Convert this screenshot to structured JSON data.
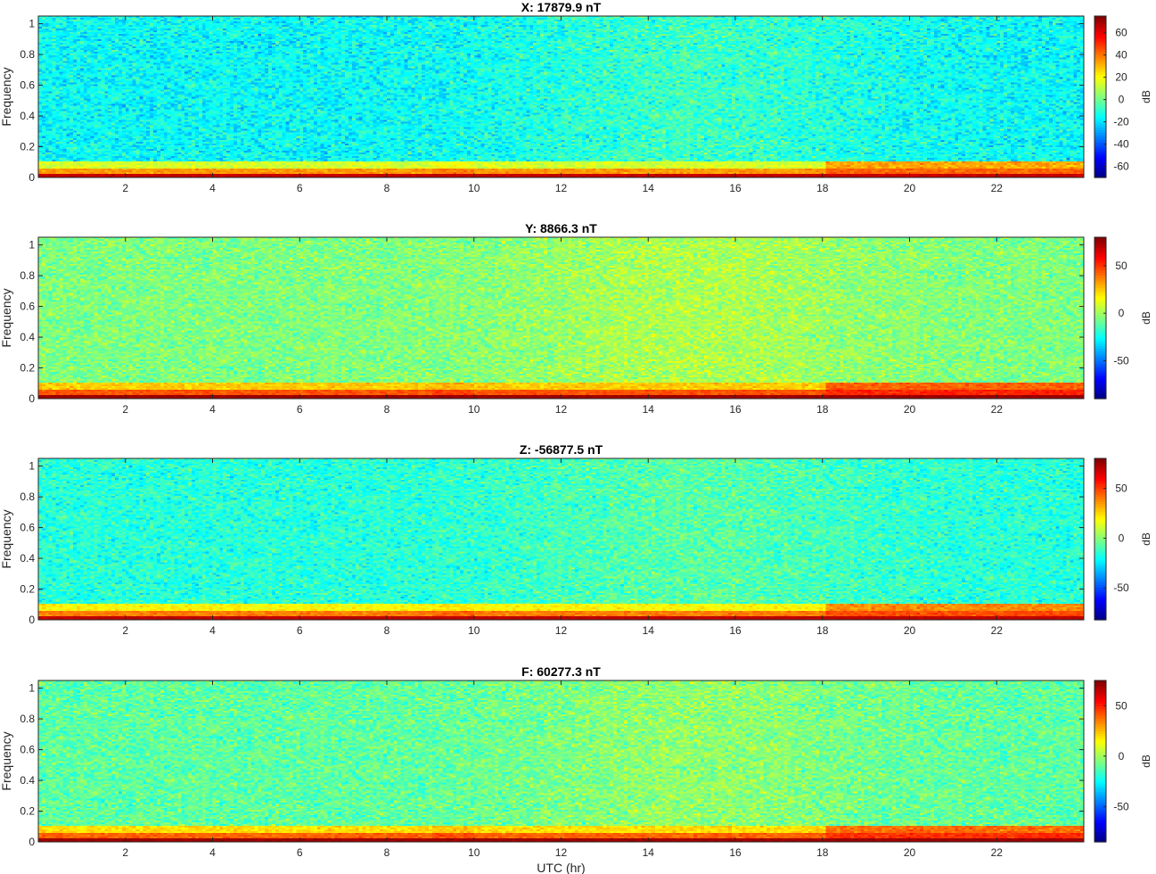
{
  "figure_xlabel": "UTC (hr)",
  "chart_data": [
    {
      "type": "heatmap",
      "title": "X: 17879.9 nT",
      "xlabel": "",
      "ylabel": "Frequency",
      "xlim": [
        0,
        24
      ],
      "ylim": [
        0,
        1.05
      ],
      "xticks": [
        2,
        4,
        6,
        8,
        10,
        12,
        14,
        16,
        18,
        20,
        22
      ],
      "yticks": [
        0,
        0.2,
        0.4,
        0.6,
        0.8,
        1
      ],
      "colorbar": {
        "label": "dB",
        "range": [
          -70,
          75
        ],
        "ticks": [
          -60,
          -40,
          -20,
          0,
          20,
          40,
          60
        ]
      },
      "colormap": "jet",
      "background_level_db": -15,
      "low_freq_band_db": 40
    },
    {
      "type": "heatmap",
      "title": "Y: 8866.3 nT",
      "xlabel": "",
      "ylabel": "Frequency",
      "xlim": [
        0,
        24
      ],
      "ylim": [
        0,
        1.05
      ],
      "xticks": [
        2,
        4,
        6,
        8,
        10,
        12,
        14,
        16,
        18,
        20,
        22
      ],
      "yticks": [
        0,
        0.2,
        0.4,
        0.6,
        0.8,
        1
      ],
      "colorbar": {
        "label": "dB",
        "range": [
          -90,
          80
        ],
        "ticks": [
          -50,
          0,
          50
        ]
      },
      "colormap": "jet",
      "background_level_db": -5,
      "low_freq_band_db": 50
    },
    {
      "type": "heatmap",
      "title": "Z: -56877.5 nT",
      "xlabel": "",
      "ylabel": "Frequency",
      "xlim": [
        0,
        24
      ],
      "ylim": [
        0,
        1.05
      ],
      "xticks": [
        2,
        4,
        6,
        8,
        10,
        12,
        14,
        16,
        18,
        20,
        22
      ],
      "yticks": [
        0,
        0.2,
        0.4,
        0.6,
        0.8,
        1
      ],
      "colorbar": {
        "label": "dB",
        "range": [
          -82,
          80
        ],
        "ticks": [
          -50,
          0,
          50
        ]
      },
      "colormap": "jet",
      "background_level_db": -15,
      "low_freq_band_db": 45
    },
    {
      "type": "heatmap",
      "title": "F: 60277.3 nT",
      "xlabel": "UTC (hr)",
      "ylabel": "Frequency",
      "xlim": [
        0,
        24
      ],
      "ylim": [
        0,
        1.05
      ],
      "xticks": [
        2,
        4,
        6,
        8,
        10,
        12,
        14,
        16,
        18,
        20,
        22
      ],
      "yticks": [
        0,
        0.2,
        0.4,
        0.6,
        0.8,
        1
      ],
      "colorbar": {
        "label": "dB",
        "range": [
          -85,
          75
        ],
        "ticks": [
          -50,
          0,
          50
        ]
      },
      "colormap": "jet",
      "background_level_db": -10,
      "low_freq_band_db": 45
    }
  ]
}
